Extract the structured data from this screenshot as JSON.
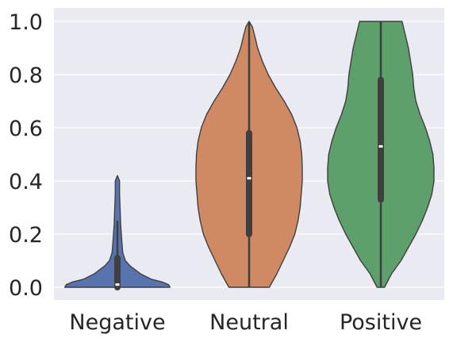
{
  "chart_data": {
    "type": "violin",
    "title": "",
    "xlabel": "",
    "ylabel": "",
    "ylim": [
      -0.05,
      1.05
    ],
    "yticks": [
      0.0,
      0.2,
      0.4,
      0.6,
      0.8,
      1.0
    ],
    "ytick_labels": [
      "0.0",
      "0.2",
      "0.4",
      "0.6",
      "0.8",
      "1.0"
    ],
    "grid": true,
    "categories": [
      "Negative",
      "Neutral",
      "Positive"
    ],
    "colors": {
      "background": "#EAEAF2",
      "grid": "#FFFFFF",
      "outline": "#3F3F3F",
      "Negative": "#5874AE",
      "Neutral": "#CF8A63",
      "Positive": "#5DA06C"
    },
    "series": [
      {
        "category": "Negative",
        "min": 0.0,
        "q1": 0.0,
        "median": 0.01,
        "q3": 0.11,
        "whisker_high": 0.25,
        "max": 0.42,
        "density": [
          [
            0.0,
            0.0
          ],
          [
            0.0,
            0.99
          ],
          [
            0.01,
            0.96
          ],
          [
            0.02,
            0.84
          ],
          [
            0.03,
            0.64
          ],
          [
            0.05,
            0.44
          ],
          [
            0.08,
            0.24
          ],
          [
            0.1,
            0.15
          ],
          [
            0.13,
            0.1
          ],
          [
            0.18,
            0.08
          ],
          [
            0.24,
            0.06
          ],
          [
            0.3,
            0.05
          ],
          [
            0.35,
            0.04
          ],
          [
            0.38,
            0.04
          ],
          [
            0.4,
            0.04
          ],
          [
            0.42,
            0.0
          ]
        ]
      },
      {
        "category": "Neutral",
        "min": 0.0,
        "q1": 0.2,
        "median": 0.41,
        "q3": 0.58,
        "whisker_high": 1.0,
        "max": 1.0,
        "density": [
          [
            0.0,
            0.0
          ],
          [
            0.0,
            0.38
          ],
          [
            0.05,
            0.52
          ],
          [
            0.1,
            0.64
          ],
          [
            0.15,
            0.76
          ],
          [
            0.2,
            0.86
          ],
          [
            0.25,
            0.92
          ],
          [
            0.3,
            0.96
          ],
          [
            0.35,
            0.98
          ],
          [
            0.4,
            1.0
          ],
          [
            0.45,
            1.0
          ],
          [
            0.5,
            0.99
          ],
          [
            0.55,
            0.96
          ],
          [
            0.6,
            0.9
          ],
          [
            0.65,
            0.8
          ],
          [
            0.7,
            0.66
          ],
          [
            0.75,
            0.5
          ],
          [
            0.8,
            0.36
          ],
          [
            0.85,
            0.25
          ],
          [
            0.9,
            0.16
          ],
          [
            0.95,
            0.1
          ],
          [
            0.98,
            0.06
          ],
          [
            1.0,
            0.0
          ]
        ]
      },
      {
        "category": "Positive",
        "min": 0.0,
        "q1": 0.33,
        "median": 0.53,
        "q3": 0.78,
        "whisker_high": 1.0,
        "max": 1.0,
        "density": [
          [
            0.0,
            0.0
          ],
          [
            0.0,
            0.07
          ],
          [
            0.05,
            0.2
          ],
          [
            0.1,
            0.38
          ],
          [
            0.15,
            0.52
          ],
          [
            0.2,
            0.66
          ],
          [
            0.25,
            0.78
          ],
          [
            0.3,
            0.88
          ],
          [
            0.35,
            0.96
          ],
          [
            0.4,
            1.0
          ],
          [
            0.45,
            1.0
          ],
          [
            0.5,
            0.98
          ],
          [
            0.55,
            0.92
          ],
          [
            0.6,
            0.84
          ],
          [
            0.65,
            0.74
          ],
          [
            0.7,
            0.66
          ],
          [
            0.75,
            0.62
          ],
          [
            0.8,
            0.6
          ],
          [
            0.85,
            0.56
          ],
          [
            0.9,
            0.52
          ],
          [
            0.95,
            0.46
          ],
          [
            1.0,
            0.4
          ],
          [
            1.0,
            0.0
          ]
        ]
      }
    ]
  }
}
